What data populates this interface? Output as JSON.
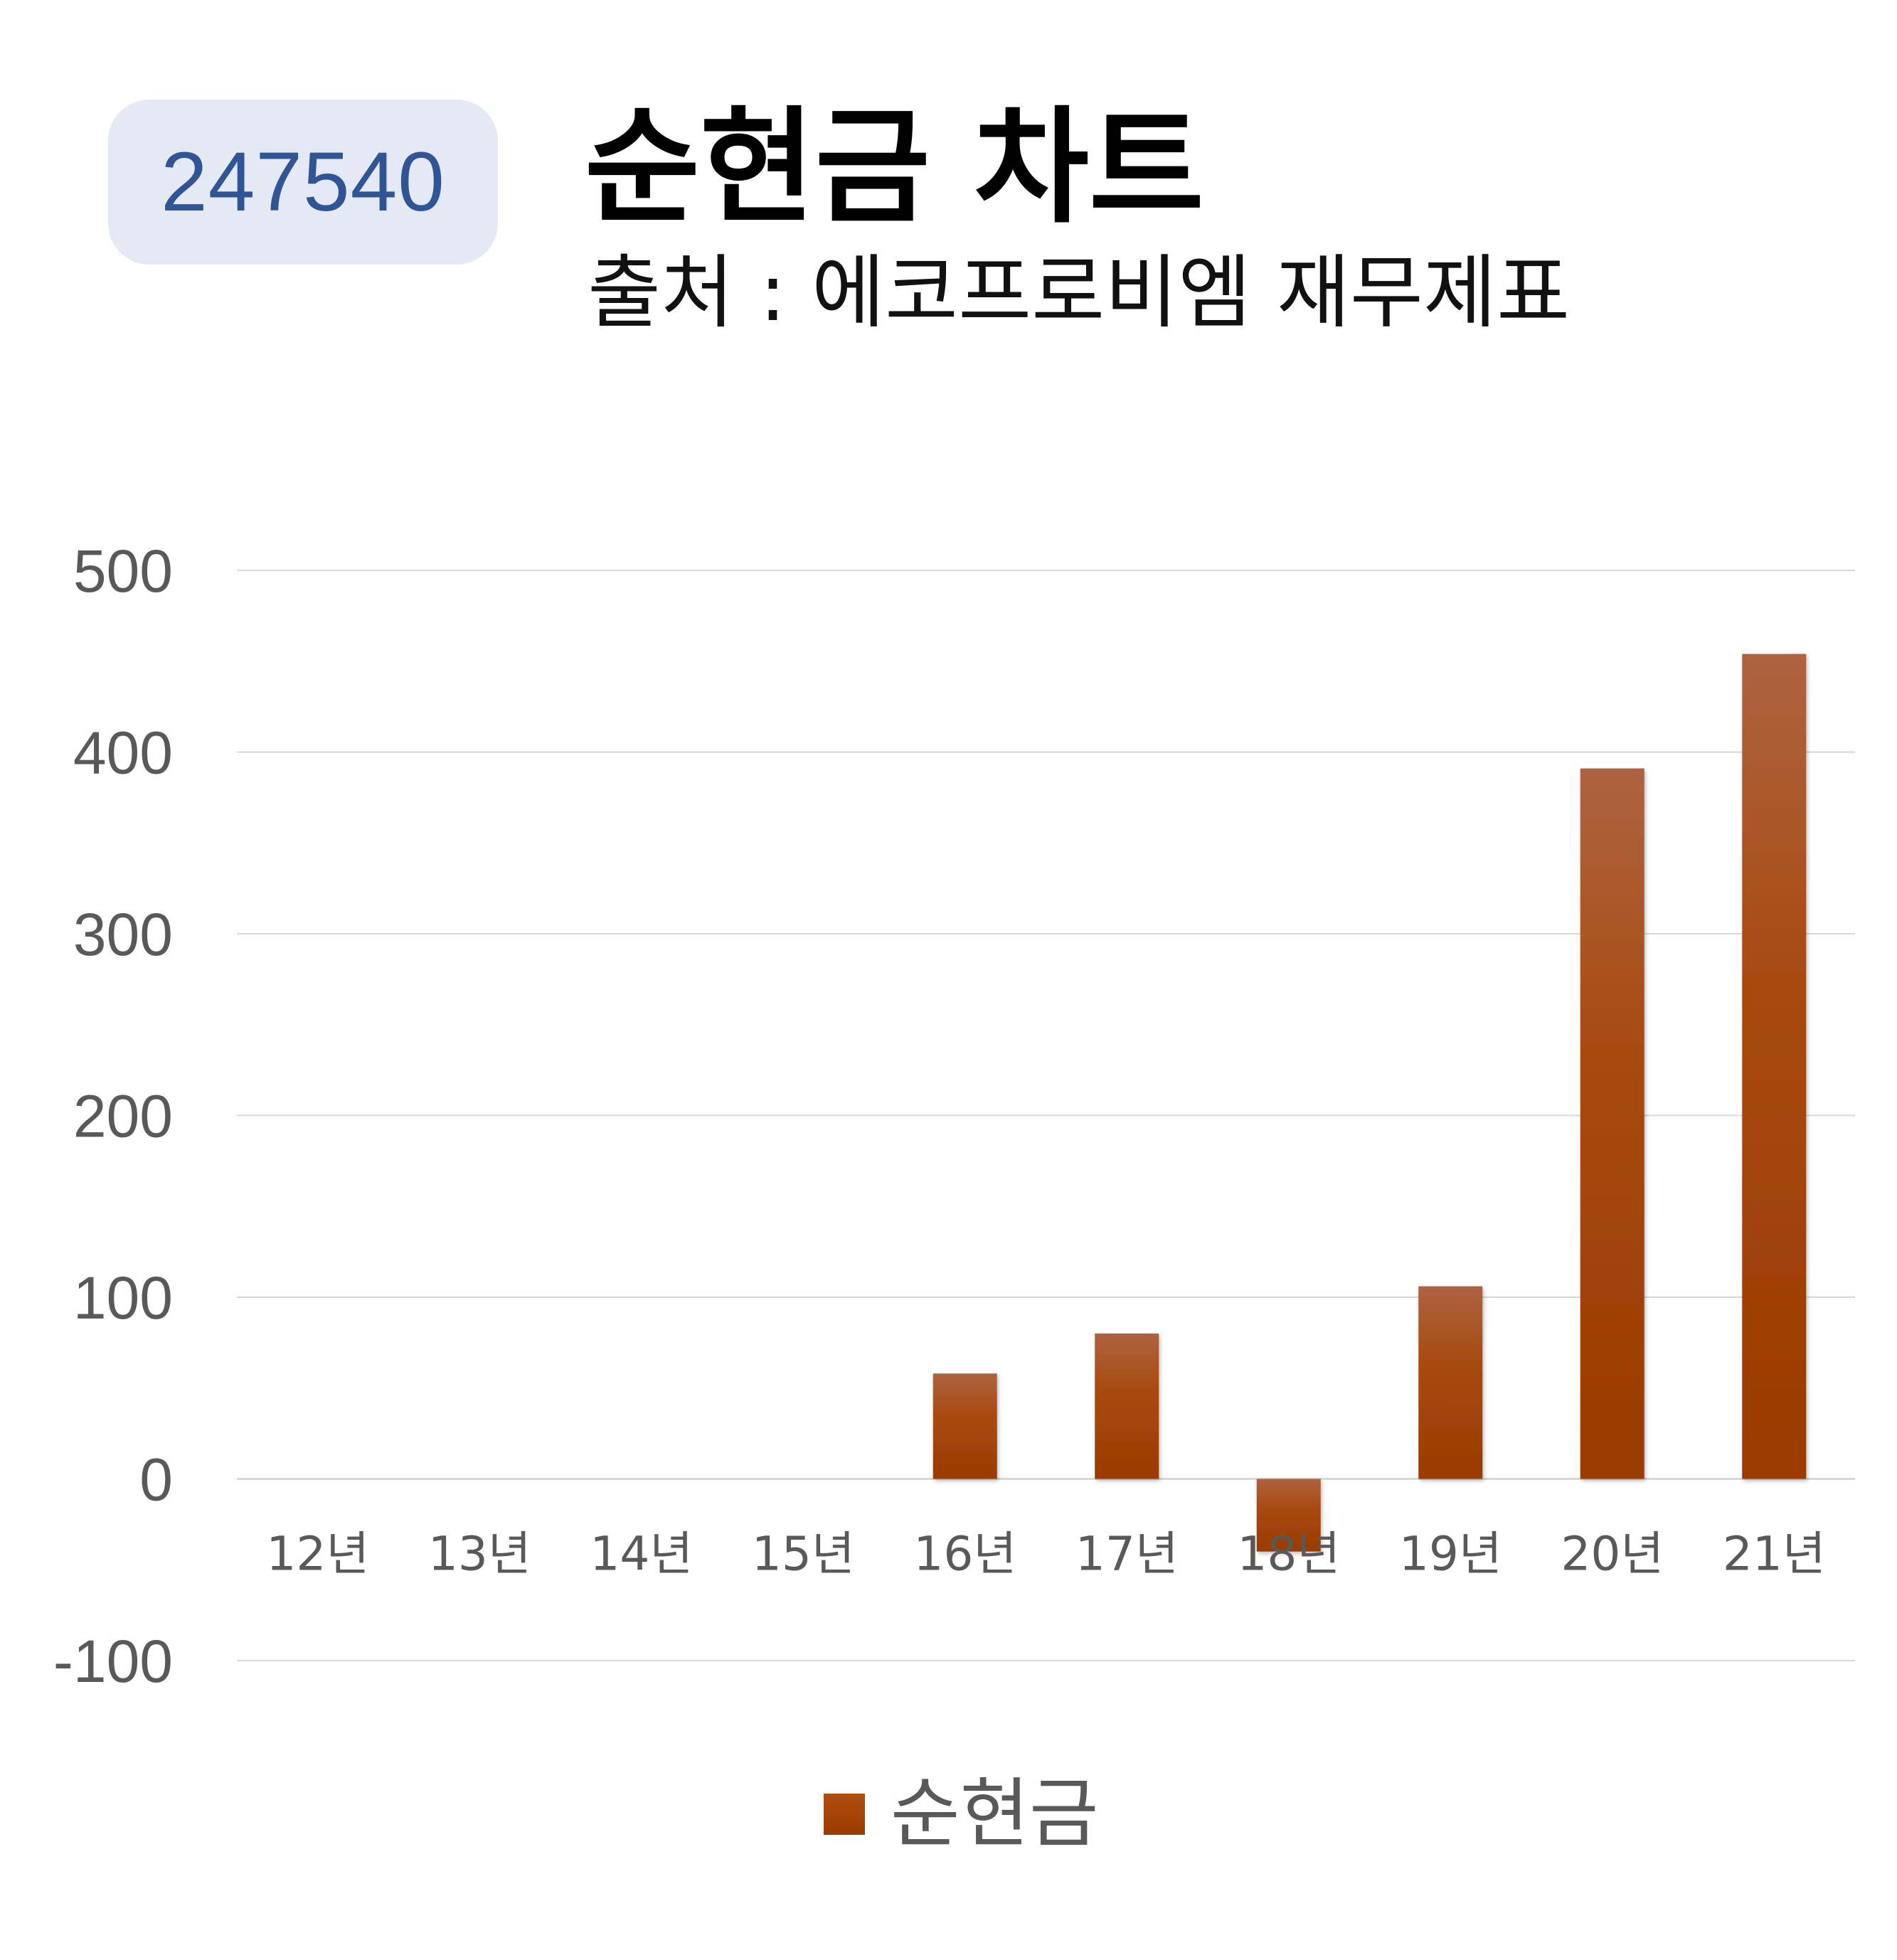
{
  "badge": {
    "code": "247540"
  },
  "chart_data": {
    "type": "bar",
    "title": "순현금 차트",
    "subtitle": "출처 : 에코프로비엠 재무제표",
    "categories": [
      "12년",
      "13년",
      "14년",
      "15년",
      "16년",
      "17년",
      "18년",
      "19년",
      "20년",
      "21년"
    ],
    "series": [
      {
        "name": "순현금",
        "values": [
          0,
          0,
          0,
          0,
          58,
          80,
          -40,
          106,
          391,
          454
        ],
        "color": "#9a3b00",
        "color_light": "#ad6340"
      }
    ],
    "ylim": [
      -100,
      500
    ],
    "yticks": [
      "500",
      "400",
      "300",
      "200",
      "100",
      "0",
      "-100"
    ],
    "ytick_values": [
      500,
      400,
      300,
      200,
      100,
      0,
      -100
    ],
    "xlabel": "",
    "ylabel": "",
    "grid": true,
    "legend": "bottom-center",
    "gridline_color": "#d9d9d9",
    "tick_label_color": "#595959"
  }
}
